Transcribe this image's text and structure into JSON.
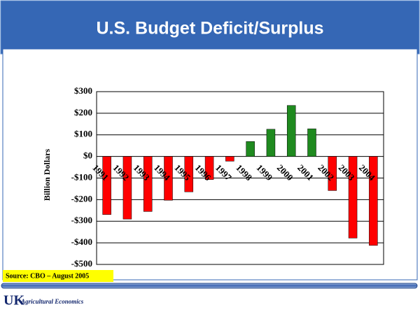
{
  "chart_data": {
    "type": "bar",
    "title": "U.S. Budget Deficit/Surplus",
    "y_label": "Billion Dollars",
    "categories": [
      "1991",
      "1992",
      "1993",
      "1994",
      "1995",
      "1996",
      "1997",
      "1998",
      "1999",
      "2000",
      "2001",
      "2002",
      "2003",
      "2004"
    ],
    "values": [
      -269,
      -290,
      -255,
      -203,
      -164,
      -107,
      -22,
      69,
      126,
      236,
      128,
      -158,
      -378,
      -412
    ],
    "color_positive": "#1f8a1f",
    "color_negative": "#ff0000",
    "ylim": [
      -500,
      300
    ],
    "yticks": [
      {
        "value": -500,
        "label": "-$500"
      },
      {
        "value": -400,
        "label": "-$400"
      },
      {
        "value": -300,
        "label": "-$300"
      },
      {
        "value": -200,
        "label": "-$200"
      },
      {
        "value": -100,
        "label": "-$100"
      },
      {
        "value": 0,
        "label": "$0"
      },
      {
        "value": 100,
        "label": "$100"
      },
      {
        "value": 200,
        "label": "$200"
      },
      {
        "value": 300,
        "label": "$300"
      }
    ],
    "grid": true,
    "source": "Source:  CBO – August 2005"
  },
  "footer": {
    "logo": "UK",
    "department": "Agricultural Economics"
  }
}
